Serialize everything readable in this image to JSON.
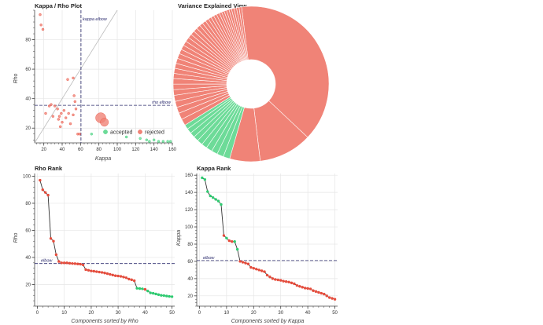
{
  "colors": {
    "accepted": "#2ecc71",
    "rejected": "#e74c3c",
    "rejected_fill": "#f08377",
    "accepted_fill": "#6ddb98",
    "line": "#333333",
    "reference": "#2c2c6e",
    "grid": "#e6e6e6"
  },
  "chart_data": [
    {
      "id": "kappa-rho",
      "type": "scatter",
      "title": "Kappa / Rho Plot",
      "xlabel": "Kappa",
      "ylabel": "Rho",
      "xlim": [
        10,
        160
      ],
      "ylim": [
        10,
        100
      ],
      "xticks": [
        20,
        40,
        60,
        80,
        100,
        120,
        140,
        160
      ],
      "yticks": [
        20,
        40,
        60,
        80
      ],
      "grid": true,
      "legend_position": "bottom-right",
      "legend": [
        "accepted",
        "rejected"
      ],
      "kappa_elbow": 60.5,
      "rho_elbow": 35.5,
      "kappa_elbow_label": "kappa elbow",
      "rho_elbow_label": "rho elbow",
      "identity_line": true,
      "series": [
        {
          "name": "rejected",
          "points": [
            [
              16,
              97,
              1
            ],
            [
              17,
              90,
              1
            ],
            [
              19,
              87,
              1
            ],
            [
              46,
              53,
              1
            ],
            [
              52,
              54,
              1
            ],
            [
              53,
              42,
              1
            ],
            [
              54,
              38,
              1
            ],
            [
              28,
              36,
              1
            ],
            [
              32,
              35,
              1
            ],
            [
              26,
              35,
              1
            ],
            [
              35,
              33,
              1
            ],
            [
              42,
              32,
              1
            ],
            [
              55,
              33,
              1
            ],
            [
              22,
              30,
              1
            ],
            [
              39,
              30,
              1
            ],
            [
              47,
              30,
              1
            ],
            [
              52,
              29,
              1
            ],
            [
              37,
              28,
              1
            ],
            [
              30,
              28,
              1
            ],
            [
              44,
              27,
              1
            ],
            [
              36,
              26,
              1
            ],
            [
              40,
              24,
              1
            ],
            [
              49,
              23,
              1
            ],
            [
              38,
              21,
              1
            ],
            [
              57,
              16,
              1
            ],
            [
              59,
              16,
              1
            ],
            [
              82,
              27,
              5
            ],
            [
              86,
              24,
              4
            ]
          ]
        },
        {
          "name": "accepted",
          "points": [
            [
              72,
              16,
              1
            ],
            [
              110,
              14,
              1
            ],
            [
              125,
              13,
              1
            ],
            [
              132,
              12,
              1
            ],
            [
              140,
              12,
              1
            ],
            [
              145,
              11,
              1
            ],
            [
              150,
              11,
              1
            ],
            [
              155,
              11,
              1
            ],
            [
              158,
              11,
              1
            ],
            [
              135,
              11,
              1
            ]
          ]
        }
      ]
    },
    {
      "id": "variance",
      "type": "pie",
      "title": "Variance Explained View",
      "start_angle_deg": 97,
      "note": "donut chart; slice values are percent of total",
      "slices": [
        {
          "c": "rejected",
          "v": 37.0
        },
        {
          "c": "rejected",
          "v": 10.5
        },
        {
          "c": "rejected",
          "v": 6.0
        },
        {
          "c": "accepted",
          "v": 1.3
        },
        {
          "c": "accepted",
          "v": 1.3
        },
        {
          "c": "accepted",
          "v": 1.2
        },
        {
          "c": "accepted",
          "v": 1.2
        },
        {
          "c": "accepted",
          "v": 1.1
        },
        {
          "c": "accepted",
          "v": 1.1
        },
        {
          "c": "accepted",
          "v": 1.0
        },
        {
          "c": "accepted",
          "v": 1.0
        },
        {
          "c": "accepted",
          "v": 1.0
        },
        {
          "c": "accepted",
          "v": 0.9
        },
        {
          "c": "rejected",
          "v": 1.3
        },
        {
          "c": "rejected",
          "v": 1.3
        },
        {
          "c": "rejected",
          "v": 1.2
        },
        {
          "c": "rejected",
          "v": 1.2
        },
        {
          "c": "rejected",
          "v": 1.2
        },
        {
          "c": "rejected",
          "v": 1.1
        },
        {
          "c": "rejected",
          "v": 1.1
        },
        {
          "c": "rejected",
          "v": 1.1
        },
        {
          "c": "rejected",
          "v": 1.0
        },
        {
          "c": "rejected",
          "v": 1.0
        },
        {
          "c": "rejected",
          "v": 1.0
        },
        {
          "c": "rejected",
          "v": 1.0
        },
        {
          "c": "rejected",
          "v": 1.0
        },
        {
          "c": "rejected",
          "v": 0.9
        },
        {
          "c": "rejected",
          "v": 0.9
        },
        {
          "c": "rejected",
          "v": 0.9
        },
        {
          "c": "rejected",
          "v": 0.9
        },
        {
          "c": "rejected",
          "v": 0.8
        },
        {
          "c": "rejected",
          "v": 0.8
        },
        {
          "c": "rejected",
          "v": 0.8
        },
        {
          "c": "rejected",
          "v": 0.8
        },
        {
          "c": "rejected",
          "v": 0.7
        },
        {
          "c": "rejected",
          "v": 0.7
        },
        {
          "c": "rejected",
          "v": 0.7
        },
        {
          "c": "rejected",
          "v": 0.6
        },
        {
          "c": "rejected",
          "v": 0.6
        },
        {
          "c": "rejected",
          "v": 0.6
        },
        {
          "c": "rejected",
          "v": 0.6
        },
        {
          "c": "rejected",
          "v": 0.5
        },
        {
          "c": "rejected",
          "v": 0.5
        },
        {
          "c": "rejected",
          "v": 0.5
        },
        {
          "c": "rejected",
          "v": 0.5
        },
        {
          "c": "rejected",
          "v": 0.5
        },
        {
          "c": "rejected",
          "v": 0.5
        },
        {
          "c": "rejected",
          "v": 0.5
        },
        {
          "c": "rejected",
          "v": 0.5
        },
        {
          "c": "rejected",
          "v": 0.5
        }
      ]
    },
    {
      "id": "rho-rank",
      "type": "line",
      "title": "Rho Rank",
      "xlabel": "Components sorted by Rho",
      "ylabel": "Rho",
      "xlim": [
        -1,
        51
      ],
      "ylim": [
        4,
        102
      ],
      "xticks": [
        0,
        10,
        20,
        30,
        40,
        50
      ],
      "yticks": [
        20,
        40,
        60,
        80,
        100
      ],
      "grid": true,
      "elbow": 35.5,
      "elbow_label": "elbow",
      "x": [
        1,
        2,
        3,
        4,
        5,
        6,
        7,
        8,
        9,
        10,
        11,
        12,
        13,
        14,
        15,
        16,
        17,
        18,
        19,
        20,
        21,
        22,
        23,
        24,
        25,
        26,
        27,
        28,
        29,
        30,
        31,
        32,
        33,
        34,
        35,
        36,
        37,
        38,
        39,
        40,
        41,
        42,
        43,
        44,
        45,
        46,
        47,
        48,
        49,
        50
      ],
      "values": [
        97,
        90,
        88,
        86,
        54,
        52,
        42,
        37,
        36,
        36,
        36,
        35.7,
        35.5,
        35.4,
        35.2,
        35,
        34.5,
        31,
        30.5,
        30,
        29.8,
        29.5,
        29.2,
        28.9,
        28.5,
        28,
        27.5,
        27,
        26.5,
        26.3,
        26,
        25.5,
        25,
        24,
        23.5,
        22.8,
        17.2,
        17,
        16.8,
        16.4,
        15.2,
        13.8,
        13.5,
        13,
        12.5,
        12,
        11.8,
        11.5,
        11.2,
        11
      ],
      "colors": [
        "rejected",
        "rejected",
        "rejected",
        "rejected",
        "rejected",
        "rejected",
        "rejected",
        "rejected",
        "rejected",
        "rejected",
        "rejected",
        "rejected",
        "rejected",
        "rejected",
        "rejected",
        "rejected",
        "rejected",
        "rejected",
        "rejected",
        "rejected",
        "rejected",
        "rejected",
        "rejected",
        "rejected",
        "rejected",
        "rejected",
        "rejected",
        "rejected",
        "rejected",
        "rejected",
        "rejected",
        "rejected",
        "rejected",
        "rejected",
        "rejected",
        "rejected",
        "accepted",
        "accepted",
        "accepted",
        "rejected",
        "accepted",
        "accepted",
        "accepted",
        "accepted",
        "accepted",
        "accepted",
        "accepted",
        "accepted",
        "accepted",
        "accepted"
      ]
    },
    {
      "id": "kappa-rank",
      "type": "line",
      "title": "Kappa Rank",
      "xlabel": "Components sorted by Kappa",
      "ylabel": "Kappa",
      "xlim": [
        -1,
        51
      ],
      "ylim": [
        8,
        162
      ],
      "xticks": [
        0,
        10,
        20,
        30,
        40,
        50
      ],
      "yticks": [
        20,
        40,
        60,
        80,
        100,
        120,
        140,
        160
      ],
      "grid": true,
      "elbow": 61,
      "elbow_label": "elbow",
      "x": [
        1,
        2,
        3,
        4,
        5,
        6,
        7,
        8,
        9,
        10,
        11,
        12,
        13,
        14,
        15,
        16,
        17,
        18,
        19,
        20,
        21,
        22,
        23,
        24,
        25,
        26,
        27,
        28,
        29,
        30,
        31,
        32,
        33,
        34,
        35,
        36,
        37,
        38,
        39,
        40,
        41,
        42,
        43,
        44,
        45,
        46,
        47,
        48,
        49,
        50
      ],
      "values": [
        157,
        155,
        141,
        136,
        134,
        132,
        130,
        126,
        90,
        87,
        84,
        83,
        83,
        74,
        60,
        59,
        58,
        57,
        53,
        52,
        51,
        50,
        49,
        48,
        44,
        42,
        40,
        39,
        38.5,
        38,
        37,
        36.5,
        36,
        35,
        34,
        32,
        31,
        30,
        29,
        28.5,
        28,
        26,
        25,
        24,
        23,
        22,
        20,
        18,
        17,
        16
      ],
      "colors": [
        "accepted",
        "accepted",
        "accepted",
        "accepted",
        "accepted",
        "accepted",
        "accepted",
        "accepted",
        "rejected",
        "accepted",
        "rejected",
        "rejected",
        "accepted",
        "accepted",
        "rejected",
        "rejected",
        "rejected",
        "rejected",
        "rejected",
        "rejected",
        "rejected",
        "rejected",
        "rejected",
        "rejected",
        "rejected",
        "rejected",
        "rejected",
        "rejected",
        "rejected",
        "rejected",
        "rejected",
        "rejected",
        "rejected",
        "rejected",
        "rejected",
        "rejected",
        "rejected",
        "rejected",
        "rejected",
        "rejected",
        "rejected",
        "rejected",
        "rejected",
        "rejected",
        "rejected",
        "rejected",
        "rejected",
        "rejected",
        "rejected",
        "rejected"
      ]
    }
  ]
}
